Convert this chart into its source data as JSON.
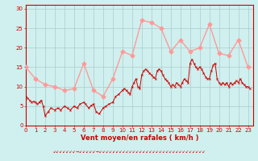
{
  "bg_color": "#cff0ee",
  "grid_color": "#aacccc",
  "axis_color": "#cc0000",
  "text_color": "#cc0000",
  "xlabel": "Vent moyen/en rafales ( km/h )",
  "ylim": [
    0,
    31
  ],
  "xlim": [
    0,
    23.5
  ],
  "yticks": [
    0,
    5,
    10,
    15,
    20,
    25,
    30
  ],
  "xticks": [
    0,
    1,
    2,
    3,
    4,
    5,
    6,
    7,
    8,
    9,
    10,
    11,
    12,
    13,
    14,
    15,
    16,
    17,
    18,
    19,
    20,
    21,
    22,
    23
  ],
  "xtick_labels": [
    "0",
    "1",
    "2",
    "3",
    "4",
    "5",
    "6",
    "7",
    "8",
    "9",
    "10",
    "11",
    "12",
    "13",
    "14",
    "15",
    "16",
    "17",
    "18",
    "19",
    "20",
    "21",
    "22",
    "23"
  ],
  "mean_x": [
    0,
    1,
    2,
    3,
    4,
    5,
    6,
    7,
    8,
    9,
    10,
    11,
    12,
    13,
    14,
    15,
    16,
    17,
    18,
    19,
    20,
    21,
    22,
    23
  ],
  "mean_y": [
    15,
    12,
    10.5,
    10,
    9,
    9.5,
    16,
    9,
    7.5,
    12,
    19,
    18,
    27,
    26.5,
    25,
    19,
    22,
    19,
    20,
    26,
    18.5,
    18,
    22,
    15
  ],
  "wind_x": [
    0.0,
    0.2,
    0.4,
    0.6,
    0.8,
    1.0,
    1.2,
    1.4,
    1.6,
    1.8,
    2.0,
    2.3,
    2.6,
    3.0,
    3.3,
    3.6,
    4.0,
    4.3,
    4.6,
    5.0,
    5.3,
    5.6,
    6.0,
    6.2,
    6.5,
    6.8,
    7.0,
    7.3,
    7.6,
    8.0,
    8.3,
    8.6,
    9.0,
    9.3,
    9.6,
    10.0,
    10.2,
    10.4,
    10.6,
    10.8,
    11.0,
    11.2,
    11.4,
    11.6,
    11.8,
    12.0,
    12.2,
    12.4,
    12.6,
    12.8,
    13.0,
    13.2,
    13.4,
    13.6,
    13.8,
    14.0,
    14.2,
    14.4,
    14.6,
    14.8,
    15.0,
    15.2,
    15.4,
    15.6,
    15.8,
    16.0,
    16.2,
    16.4,
    16.6,
    16.8,
    17.0,
    17.2,
    17.4,
    17.6,
    17.8,
    18.0,
    18.2,
    18.4,
    18.6,
    18.8,
    19.0,
    19.2,
    19.4,
    19.6,
    19.8,
    20.0,
    20.2,
    20.4,
    20.6,
    20.8,
    21.0,
    21.2,
    21.4,
    21.6,
    21.8,
    22.0,
    22.2,
    22.4,
    22.6,
    22.8,
    23.0,
    23.2
  ],
  "wind_y": [
    7.5,
    7.0,
    6.5,
    6.0,
    6.2,
    6.0,
    5.5,
    6.0,
    6.5,
    5.0,
    2.5,
    3.5,
    4.5,
    4.0,
    4.5,
    4.0,
    5.0,
    4.5,
    4.0,
    5.0,
    4.5,
    5.5,
    6.0,
    5.5,
    4.5,
    5.2,
    5.5,
    3.5,
    3.0,
    4.5,
    5.0,
    5.5,
    6.0,
    7.5,
    8.0,
    9.0,
    9.5,
    9.0,
    8.5,
    8.0,
    10.0,
    11.0,
    12.0,
    10.0,
    9.5,
    13.0,
    14.0,
    14.5,
    14.0,
    13.5,
    13.0,
    12.5,
    12.0,
    14.0,
    14.5,
    14.0,
    13.0,
    12.0,
    11.5,
    11.0,
    10.0,
    10.5,
    10.0,
    11.0,
    10.5,
    10.0,
    11.0,
    12.0,
    11.5,
    11.0,
    16.0,
    17.0,
    16.0,
    15.0,
    14.5,
    15.0,
    14.5,
    13.5,
    12.5,
    12.0,
    12.0,
    14.0,
    15.5,
    16.0,
    12.0,
    11.0,
    10.5,
    11.0,
    10.5,
    11.0,
    10.0,
    11.0,
    10.5,
    11.0,
    11.5,
    11.0,
    12.0,
    11.0,
    10.5,
    10.0,
    10.0,
    9.5
  ],
  "mean_color": "#ff9999",
  "wind_color": "#cc0000",
  "mean_marker": "D",
  "mean_marker_size": 2.5,
  "wind_lw": 0.7,
  "mean_lw": 1.0,
  "fontsize_label": 6,
  "fontsize_tick": 5,
  "wind_dir_symbols": "↙↙↙↙↙↙↙↙↙↙↙→↙↙↙↙↙↙↙↙↙↙↙↙↙↙↙↙↙↙↙↙↙↙↙↙↙↙↙↙↙↙↙↙↙↙"
}
